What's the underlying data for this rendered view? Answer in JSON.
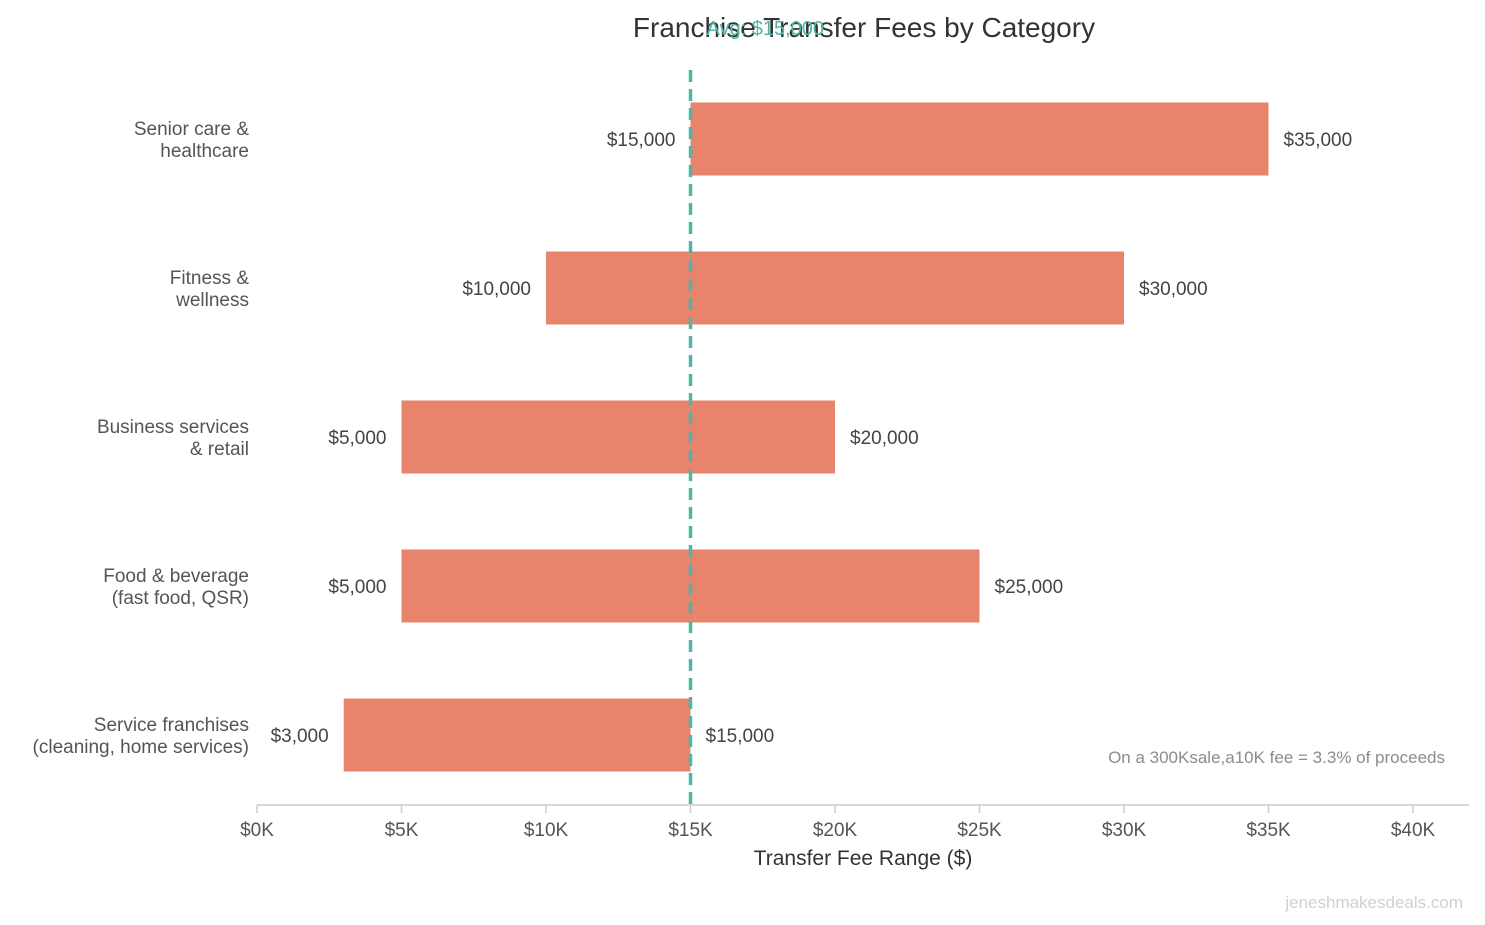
{
  "chart_data": {
    "type": "bar",
    "orientation": "horizontal-range",
    "title": "Franchise Transfer Fees by Category",
    "xlabel": "Transfer Fee Range ($)",
    "ylabel": "",
    "xlim": [
      0,
      40000
    ],
    "x_ticks": [
      0,
      5000,
      10000,
      15000,
      20000,
      25000,
      30000,
      35000,
      40000
    ],
    "x_tick_labels": [
      "$0K",
      "$5K",
      "$10K",
      "$15K",
      "$20K",
      "$25K",
      "$30K",
      "$35K",
      "$40K"
    ],
    "grid": false,
    "bar_color": "#e8846b",
    "categories": [
      {
        "label_lines": [
          "Senior care &",
          "healthcare"
        ],
        "low": 15000,
        "high": 35000,
        "low_label": "$15,000",
        "high_label": "$35,000"
      },
      {
        "label_lines": [
          "Fitness &",
          "wellness"
        ],
        "low": 10000,
        "high": 30000,
        "low_label": "$10,000",
        "high_label": "$30,000"
      },
      {
        "label_lines": [
          "Business services",
          "& retail"
        ],
        "low": 5000,
        "high": 20000,
        "low_label": "$5,000",
        "high_label": "$20,000"
      },
      {
        "label_lines": [
          "Food & beverage",
          "(fast food, QSR)"
        ],
        "low": 5000,
        "high": 25000,
        "low_label": "$5,000",
        "high_label": "$25,000"
      },
      {
        "label_lines": [
          "Service franchises",
          "(cleaning, home services)"
        ],
        "low": 3000,
        "high": 15000,
        "low_label": "$3,000",
        "high_label": "$15,000"
      }
    ],
    "reference_line": {
      "value": 15000,
      "label": "Avg: $15,000",
      "color": "#4db6a5"
    },
    "annotation": "On a 300Ksale,a10K fee = 3.3% of proceeds",
    "watermark": "jeneshmakesdeals.com"
  }
}
